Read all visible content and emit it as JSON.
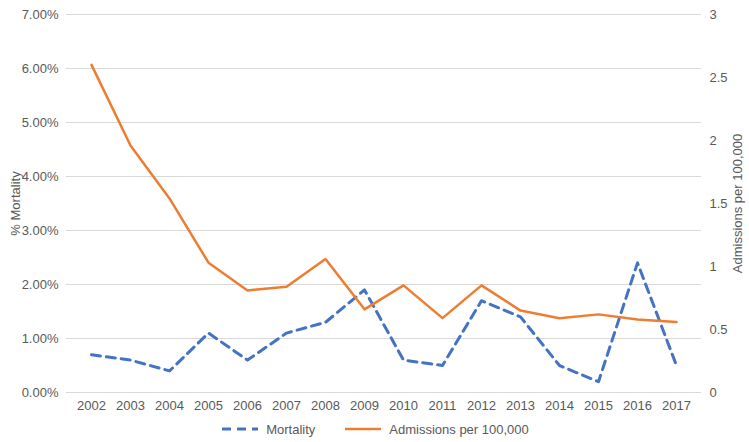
{
  "chart_data": {
    "type": "line",
    "categories": [
      "2002",
      "2003",
      "2004",
      "2005",
      "2006",
      "2007",
      "2008",
      "2009",
      "2010",
      "2011",
      "2012",
      "2013",
      "2014",
      "2015",
      "2016",
      "2017"
    ],
    "ylabel": "% Mortality",
    "y2label": "Admissions per 100,000",
    "ylim": [
      0,
      7
    ],
    "yticks": [
      {
        "value": 0,
        "label": "0.00%"
      },
      {
        "value": 1,
        "label": "1.00%"
      },
      {
        "value": 2,
        "label": "2.00%"
      },
      {
        "value": 3,
        "label": "3.00%"
      },
      {
        "value": 4,
        "label": "4.00%"
      },
      {
        "value": 5,
        "label": "5.00%"
      },
      {
        "value": 6,
        "label": "6.00%"
      },
      {
        "value": 7,
        "label": "7.00%"
      }
    ],
    "y2lim": [
      0,
      3
    ],
    "y2ticks": [
      0,
      0.5,
      1,
      1.5,
      2,
      2.5,
      3
    ],
    "grid": true,
    "legend": "bottom",
    "series": [
      {
        "name": "Mortality",
        "color": "#4472c4",
        "line_style": "dashed",
        "values": [
          0.7,
          0.6,
          0.4,
          1.1,
          0.6,
          1.1,
          1.3,
          1.9,
          0.6,
          0.5,
          1.7,
          1.4,
          0.5,
          0.2,
          2.4,
          0.5
        ]
      },
      {
        "name": "Admissions per 100,000",
        "color": "#ed7d31",
        "line_style": "solid",
        "axis": "y2",
        "values": [
          2.6,
          1.96,
          1.54,
          1.03,
          0.81,
          0.84,
          1.06,
          0.66,
          0.85,
          0.59,
          0.85,
          0.65,
          0.59,
          0.62,
          0.58,
          0.56
        ]
      }
    ]
  }
}
